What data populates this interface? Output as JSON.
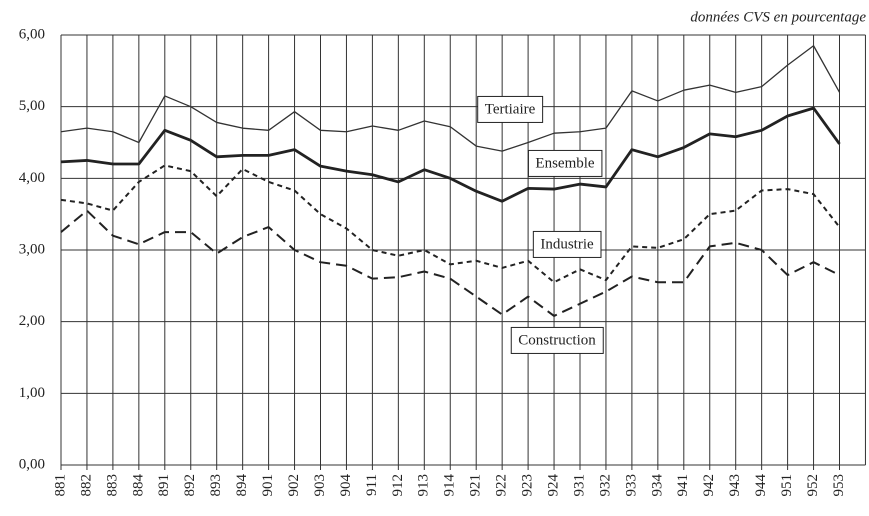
{
  "chart_data": {
    "type": "line",
    "subtitle": "données CVS en pourcentage",
    "categories": [
      "881",
      "882",
      "883",
      "884",
      "891",
      "892",
      "893",
      "894",
      "901",
      "902",
      "903",
      "904",
      "911",
      "912",
      "913",
      "914",
      "921",
      "922",
      "923",
      "924",
      "931",
      "932",
      "933",
      "934",
      "941",
      "942",
      "943",
      "944",
      "951",
      "952",
      "953"
    ],
    "series": [
      {
        "name": "Tertiaire",
        "color": "#333333",
        "values": [
          4.65,
          4.7,
          4.65,
          4.5,
          5.15,
          5.0,
          4.78,
          4.7,
          4.67,
          4.93,
          4.67,
          4.65,
          4.73,
          4.67,
          4.8,
          4.72,
          4.45,
          4.38,
          4.5,
          4.63,
          4.65,
          4.7,
          5.22,
          5.08,
          5.23,
          5.3,
          5.2,
          5.28,
          5.58,
          5.85,
          5.2
        ]
      },
      {
        "name": "Ensemble",
        "color": "#222222",
        "values": [
          4.23,
          4.25,
          4.2,
          4.2,
          4.67,
          4.53,
          4.3,
          4.32,
          4.32,
          4.4,
          4.17,
          4.1,
          4.05,
          3.95,
          4.12,
          4.0,
          3.82,
          3.68,
          3.86,
          3.85,
          3.92,
          3.88,
          4.4,
          4.3,
          4.43,
          4.62,
          4.58,
          4.67,
          4.87,
          4.98,
          4.48
        ]
      },
      {
        "name": "Industrie",
        "color": "#222222",
        "values": [
          3.7,
          3.65,
          3.55,
          3.95,
          4.18,
          4.1,
          3.75,
          4.13,
          3.95,
          3.83,
          3.5,
          3.3,
          3.0,
          2.92,
          3.0,
          2.8,
          2.85,
          2.75,
          2.85,
          2.55,
          2.73,
          2.58,
          3.05,
          3.03,
          3.15,
          3.5,
          3.55,
          3.83,
          3.85,
          3.78,
          3.32
        ]
      },
      {
        "name": "Construction",
        "color": "#222222",
        "values": [
          3.25,
          3.55,
          3.2,
          3.08,
          3.25,
          3.25,
          2.95,
          3.18,
          3.32,
          3.0,
          2.83,
          2.78,
          2.6,
          2.62,
          2.7,
          2.6,
          2.35,
          2.1,
          2.35,
          2.08,
          2.25,
          2.42,
          2.63,
          2.55,
          2.55,
          3.05,
          3.1,
          3.0,
          2.65,
          2.83,
          2.65
        ]
      }
    ],
    "ylim": [
      0,
      6
    ],
    "yticks": [
      {
        "value": 0,
        "label": "0,00"
      },
      {
        "value": 1,
        "label": "1,00"
      },
      {
        "value": 2,
        "label": "2,00"
      },
      {
        "value": 3,
        "label": "3,00"
      },
      {
        "value": 4,
        "label": "4,00"
      },
      {
        "value": 5,
        "label": "5,00"
      },
      {
        "value": 6,
        "label": "6,00"
      }
    ],
    "grid": true
  }
}
